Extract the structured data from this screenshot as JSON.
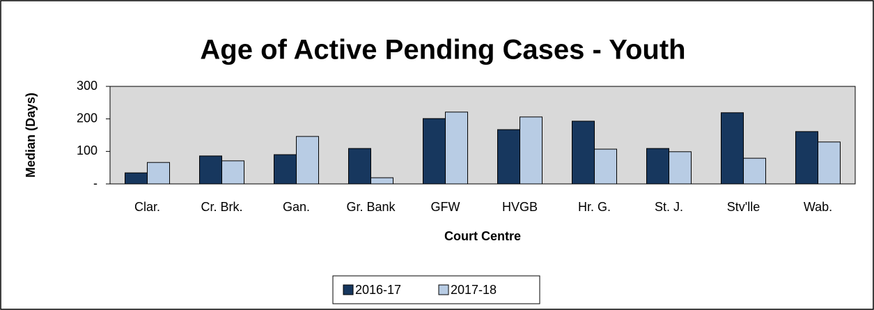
{
  "chart_data": {
    "type": "bar",
    "title": "Age of Active Pending Cases - Youth",
    "x_label": "Court Centre",
    "y_label": "Median (Days)",
    "categories": [
      "Clar.",
      "Cr. Brk.",
      "Gan.",
      "Gr. Bank",
      "GFW",
      "HVGB",
      "Hr. G.",
      "St. J.",
      "Stv'lle",
      "Wab."
    ],
    "series": [
      {
        "name": "2016-17",
        "color": "#17375e",
        "values": [
          34,
          86,
          90,
          109,
          201,
          167,
          193,
          109,
          219,
          161
        ]
      },
      {
        "name": "2017-18",
        "color": "#b8cce4",
        "values": [
          66,
          71,
          146,
          19,
          221,
          206,
          107,
          99,
          79,
          129
        ]
      }
    ],
    "ylim": [
      0,
      300
    ],
    "yticks": [
      {
        "value": 0,
        "label": "-"
      },
      100,
      200,
      300
    ],
    "grid": false,
    "legend": "bottom"
  }
}
